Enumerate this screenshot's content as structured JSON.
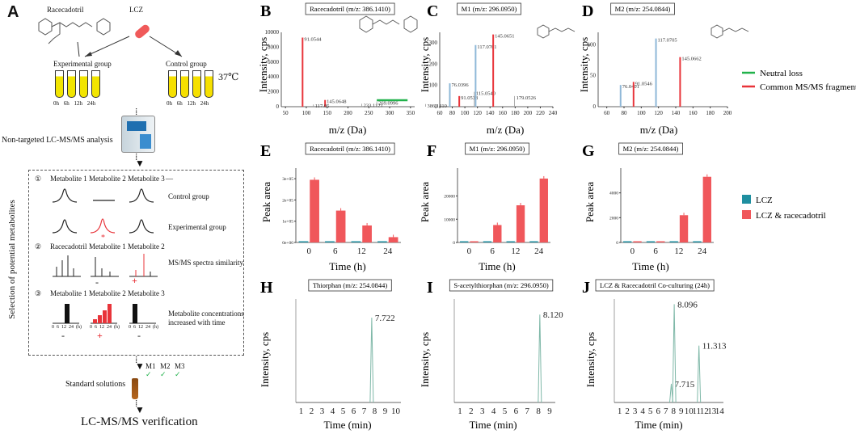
{
  "panel_a": {
    "letter": "A",
    "racecadotril": "Racecadotril",
    "lcz": "LCZ",
    "experimental_group": "Experimental group",
    "control_group": "Control group",
    "times": [
      "0h",
      "6h",
      "12h",
      "24h"
    ],
    "temperature": "37℃",
    "analysis": "Non-targeted LC-MS/MS analysis",
    "selection_label": "Selection of potential metabolites",
    "step1": "①",
    "step2": "②",
    "step3": "③",
    "row1_headers": [
      "Metabolite 1",
      "Metabolite 2",
      "Metabolite 3"
    ],
    "row2_headers": [
      "Racecadotril",
      "Metabolite 1",
      "Metabolite 2"
    ],
    "row3_headers": [
      "Metabolite 1",
      "Metabolite 2",
      "Metabolite 3"
    ],
    "control_group_label": "Control group",
    "experimental_group_label": "Experimental group",
    "msms_similarity": "MS/MS spectra similarity",
    "conc_label_1": "Metabolite concentrations",
    "conc_label_2": "increased with time",
    "mini_ticks": "0  6  12  24  (h)",
    "minus": "-",
    "plus": "+",
    "check_labels": [
      "M1",
      "M2",
      "M3"
    ],
    "standard_solutions": "Standard solutions",
    "verification": "LC-MS/MS verification"
  },
  "panel_letters": {
    "b": "B",
    "c": "C",
    "d": "D",
    "e": "E",
    "f": "F",
    "g": "G",
    "h": "H",
    "i": "I",
    "j": "J"
  },
  "titles": {
    "b": "Racecadotril (m/z: 386.1410)",
    "c": "M1 (m/z: 296.0950)",
    "d": "M2 (m/z: 254.0844)",
    "e": "Racecadotril (m/z: 386.1410)",
    "f": "M1 (m/z: 296.0950)",
    "g": "M2 (m/z: 254.0844)",
    "h": "Thiorphan (m/z: 254.0844)",
    "i": "S-acetylthiorphan (m/z: 296.0950)",
    "j": "LCZ  & Racecadotril Co-culturing (24h)"
  },
  "axes": {
    "intensity": "Intensity, cps",
    "mz": "m/z (Da)",
    "peak_area": "Peak area",
    "time_h": "Time (h)",
    "time_min": "Time (min)"
  },
  "legends": {
    "neutral_loss": "Neutral loss",
    "common_fragments": "Common MS/MS fragments",
    "lcz": "LCZ",
    "lcz_race": "LCZ & racecadotril"
  },
  "colors": {
    "red": "#e8343a",
    "green": "#22b24c",
    "teal": "#1f8fa0",
    "bar_red": "#f0575b",
    "ms_blue": "#8fb8d8"
  },
  "chart_data": [
    {
      "id": "B",
      "type": "bar",
      "title": "Racecadotril (m/z: 386.1410)",
      "xlabel": "m/z (Da)",
      "ylabel": "Intensity, cps",
      "xlim": [
        40,
        360
      ],
      "ylim": [
        0,
        10000
      ],
      "xticks": [
        50,
        100,
        150,
        200,
        250,
        300,
        350
      ],
      "yticks": [
        0,
        2000,
        4000,
        6000,
        8000,
        10000
      ],
      "peaks": [
        {
          "mz": 91.0544,
          "intensity": 9300,
          "label": "91.0544",
          "color": "red"
        },
        {
          "mz": 145.0648,
          "intensity": 900,
          "label": "145.0648",
          "color": "red"
        },
        {
          "mz": 117.05,
          "intensity": 300,
          "label": "117.05",
          "color": "grey"
        },
        {
          "mz": 233.1121,
          "intensity": 400,
          "label": "233.1121",
          "color": "grey"
        },
        {
          "mz": 269.0996,
          "intensity": 700,
          "label": "269.0996",
          "color": "grey"
        },
        {
          "mz": 386.141,
          "intensity": 350,
          "label": "386.1410",
          "color": "grey"
        }
      ],
      "neutral_loss_range": [
        269.1,
        343.0
      ]
    },
    {
      "id": "C",
      "type": "bar",
      "title": "M1 (m/z: 296.0950)",
      "xlabel": "m/z (Da)",
      "ylabel": "Intensity, cps",
      "xlim": [
        60,
        240
      ],
      "ylim": [
        0,
        350
      ],
      "xticks": [
        60,
        80,
        100,
        120,
        140,
        160,
        180,
        200,
        220,
        240
      ],
      "yticks": [
        0,
        100,
        200,
        300
      ],
      "peaks": [
        {
          "mz": 76.0396,
          "intensity": 110,
          "label": "76.0396",
          "color": "blue"
        },
        {
          "mz": 91.0538,
          "intensity": 50,
          "label": "91.0538",
          "color": "red"
        },
        {
          "mz": 117.0701,
          "intensity": 290,
          "label": "117.0701",
          "color": "blue"
        },
        {
          "mz": 115.054,
          "intensity": 70,
          "label": "115.0540",
          "color": "grey"
        },
        {
          "mz": 145.0651,
          "intensity": 340,
          "label": "145.0651",
          "color": "red"
        },
        {
          "mz": 179.0526,
          "intensity": 50,
          "label": "179.0526",
          "color": "grey"
        }
      ]
    },
    {
      "id": "D",
      "type": "bar",
      "title": "M2 (m/z: 254.0844)",
      "xlabel": "m/z (Da)",
      "ylabel": "Intensity, cps",
      "xlim": [
        50,
        200
      ],
      "ylim": [
        0,
        120
      ],
      "xticks": [
        60,
        80,
        100,
        120,
        140,
        160,
        180,
        200
      ],
      "yticks": [
        0,
        50,
        100
      ],
      "peaks": [
        {
          "mz": 76.0401,
          "intensity": 35,
          "label": "76.0401",
          "color": "blue"
        },
        {
          "mz": 91.0546,
          "intensity": 40,
          "label": "91.0546",
          "color": "red"
        },
        {
          "mz": 117.0705,
          "intensity": 110,
          "label": "117.0705",
          "color": "blue"
        },
        {
          "mz": 145.0662,
          "intensity": 80,
          "label": "145.0662",
          "color": "red"
        }
      ]
    },
    {
      "id": "E",
      "type": "bar",
      "title": "Racecadotril (m/z: 386.1410)",
      "xlabel": "Time (h)",
      "ylabel": "Peak area",
      "categories": [
        "0",
        "6",
        "12",
        "24"
      ],
      "ylim": [
        0,
        35000000
      ],
      "yticks": [
        0,
        10000000,
        20000000,
        30000000
      ],
      "ytick_labels": [
        "0e+00",
        "1e+05",
        "2e+05",
        "3e+05"
      ],
      "series": [
        {
          "name": "LCZ",
          "values": [
            300000,
            300000,
            300000,
            300000
          ]
        },
        {
          "name": "LCZ & racecadotril",
          "values": [
            29500000,
            15000000,
            8000000,
            2500000
          ]
        }
      ]
    },
    {
      "id": "F",
      "type": "bar",
      "title": "M1 (m/z: 296.0950)",
      "xlabel": "Time (h)",
      "ylabel": "Peak area",
      "categories": [
        "0",
        "6",
        "12",
        "24"
      ],
      "ylim": [
        0,
        32000
      ],
      "yticks": [
        0,
        10000,
        20000
      ],
      "ytick_labels": [
        "0",
        "10000",
        "20000"
      ],
      "series": [
        {
          "name": "LCZ",
          "values": [
            150,
            150,
            150,
            150
          ]
        },
        {
          "name": "LCZ & racecadotril",
          "values": [
            150,
            7500,
            16000,
            27500
          ]
        }
      ]
    },
    {
      "id": "G",
      "type": "bar",
      "title": "M2 (m/z: 254.0844)",
      "xlabel": "Time (h)",
      "ylabel": "Peak area",
      "categories": [
        "0",
        "6",
        "12",
        "24"
      ],
      "ylim": [
        0,
        6000
      ],
      "yticks": [
        0,
        2000,
        4000
      ],
      "ytick_labels": [
        "0",
        "2000",
        "4000"
      ],
      "series": [
        {
          "name": "LCZ",
          "values": [
            30,
            30,
            30,
            30
          ]
        },
        {
          "name": "LCZ & racecadotril",
          "values": [
            30,
            30,
            2200,
            5300
          ]
        }
      ]
    },
    {
      "id": "H",
      "type": "line",
      "title": "Thiorphan (m/z: 254.0844)",
      "xlabel": "Time (min)",
      "ylabel": "Intensity, cps",
      "xlim": [
        0.5,
        10.5
      ],
      "xticks": [
        1,
        2,
        3,
        4,
        5,
        6,
        7,
        8,
        9,
        10
      ],
      "peaks": [
        {
          "rt": 7.722,
          "height": 0.82,
          "label": "7.722"
        }
      ]
    },
    {
      "id": "I",
      "type": "line",
      "title": "S-acetylthiorphan (m/z: 296.0950)",
      "xlabel": "Time (min)",
      "ylabel": "Intensity, cps",
      "xlim": [
        0.5,
        9.5
      ],
      "xticks": [
        1,
        2,
        3,
        4,
        5,
        6,
        7,
        8,
        9
      ],
      "peaks": [
        {
          "rt": 8.12,
          "height": 0.85,
          "label": "8.120"
        }
      ]
    },
    {
      "id": "J",
      "type": "line",
      "title": "LCZ  & Racecadotril Co-culturing (24h)",
      "xlabel": "Time (min)",
      "ylabel": "Intensity, cps",
      "xlim": [
        0.3,
        14.5
      ],
      "xticks": [
        1,
        2,
        3,
        4,
        5,
        6,
        7,
        8,
        9,
        10,
        11,
        12,
        13,
        14
      ],
      "peaks": [
        {
          "rt": 7.715,
          "height": 0.18,
          "label": "7.715"
        },
        {
          "rt": 8.096,
          "height": 0.95,
          "label": "8.096"
        },
        {
          "rt": 11.313,
          "height": 0.55,
          "label": "11.313"
        }
      ]
    }
  ]
}
